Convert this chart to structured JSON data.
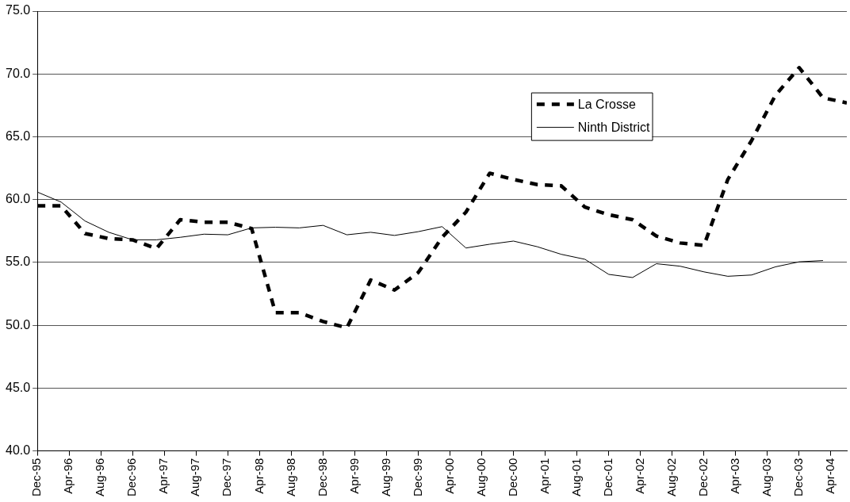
{
  "chart_data": {
    "type": "line",
    "x": [
      "1995-12",
      "1996-03",
      "1996-06",
      "1996-09",
      "1996-12",
      "1997-03",
      "1997-06",
      "1997-09",
      "1997-12",
      "1998-03",
      "1998-06",
      "1998-09",
      "1998-12",
      "1999-03",
      "1999-06",
      "1999-09",
      "1999-12",
      "2000-03",
      "2000-06",
      "2000-09",
      "2000-12",
      "2001-03",
      "2001-06",
      "2001-09",
      "2001-12",
      "2002-03",
      "2002-06",
      "2002-09",
      "2002-12",
      "2003-03",
      "2003-06",
      "2003-09",
      "2003-12",
      "2004-03",
      "2004-06"
    ],
    "series": [
      {
        "name": "La Crosse",
        "color": "#000000",
        "line_style": "dashed",
        "values": [
          59.5,
          59.5,
          57.3,
          56.9,
          56.8,
          56.1,
          58.4,
          58.2,
          58.2,
          57.7,
          51.0,
          51.0,
          50.3,
          49.8,
          53.6,
          52.8,
          54.2,
          57.0,
          59.0,
          62.1,
          61.6,
          61.2,
          61.1,
          59.4,
          58.8,
          58.4,
          57.1,
          56.55,
          56.35,
          61.6,
          64.7,
          68.3,
          70.5,
          68.1,
          67.7
        ]
      },
      {
        "name": "Ninth District",
        "color": "#000000",
        "line_style": "solid",
        "values": [
          60.6,
          59.8,
          58.3,
          57.4,
          56.8,
          56.8,
          57.0,
          57.25,
          57.2,
          57.75,
          57.8,
          57.75,
          57.95,
          57.2,
          57.4,
          57.15,
          57.45,
          57.85,
          56.15,
          56.45,
          56.7,
          56.25,
          55.65,
          55.25,
          54.05,
          53.8,
          54.9,
          54.7,
          54.25,
          53.9,
          54.0,
          54.65,
          55.05,
          55.15,
          null
        ]
      }
    ],
    "xlim": [
      "1995-12",
      "2004-06"
    ],
    "xticks": [
      {
        "value": "1995-12",
        "label": "Dec-95"
      },
      {
        "value": "1996-04",
        "label": "Apr-96"
      },
      {
        "value": "1996-08",
        "label": "Aug-96"
      },
      {
        "value": "1996-12",
        "label": "Dec-96"
      },
      {
        "value": "1997-04",
        "label": "Apr-97"
      },
      {
        "value": "1997-08",
        "label": "Aug-97"
      },
      {
        "value": "1997-12",
        "label": "Dec-97"
      },
      {
        "value": "1998-04",
        "label": "Apr-98"
      },
      {
        "value": "1998-08",
        "label": "Aug-98"
      },
      {
        "value": "1998-12",
        "label": "Dec-98"
      },
      {
        "value": "1999-04",
        "label": "Apr-99"
      },
      {
        "value": "1999-08",
        "label": "Aug-99"
      },
      {
        "value": "1999-12",
        "label": "Dec-99"
      },
      {
        "value": "2000-04",
        "label": "Apr-00"
      },
      {
        "value": "2000-08",
        "label": "Aug-00"
      },
      {
        "value": "2000-12",
        "label": "Dec-00"
      },
      {
        "value": "2001-04",
        "label": "Apr-01"
      },
      {
        "value": "2001-08",
        "label": "Aug-01"
      },
      {
        "value": "2001-12",
        "label": "Dec-01"
      },
      {
        "value": "2002-04",
        "label": "Apr-02"
      },
      {
        "value": "2002-08",
        "label": "Aug-02"
      },
      {
        "value": "2002-12",
        "label": "Dec-02"
      },
      {
        "value": "2003-04",
        "label": "Apr-03"
      },
      {
        "value": "2003-08",
        "label": "Aug-03"
      },
      {
        "value": "2003-12",
        "label": "Dec-03"
      },
      {
        "value": "2004-04",
        "label": "Apr-04"
      }
    ],
    "ylim": [
      40,
      75
    ],
    "yticks": [
      {
        "value": 40,
        "label": "40.0"
      },
      {
        "value": 45,
        "label": "45.0"
      },
      {
        "value": 50,
        "label": "50.0"
      },
      {
        "value": 55,
        "label": "55.0"
      },
      {
        "value": 60,
        "label": "60.0"
      },
      {
        "value": 65,
        "label": "65.0"
      },
      {
        "value": 70,
        "label": "70.0"
      },
      {
        "value": 75,
        "label": "75.0"
      }
    ],
    "grid": "y",
    "legend": "top right",
    "marker": "none"
  }
}
